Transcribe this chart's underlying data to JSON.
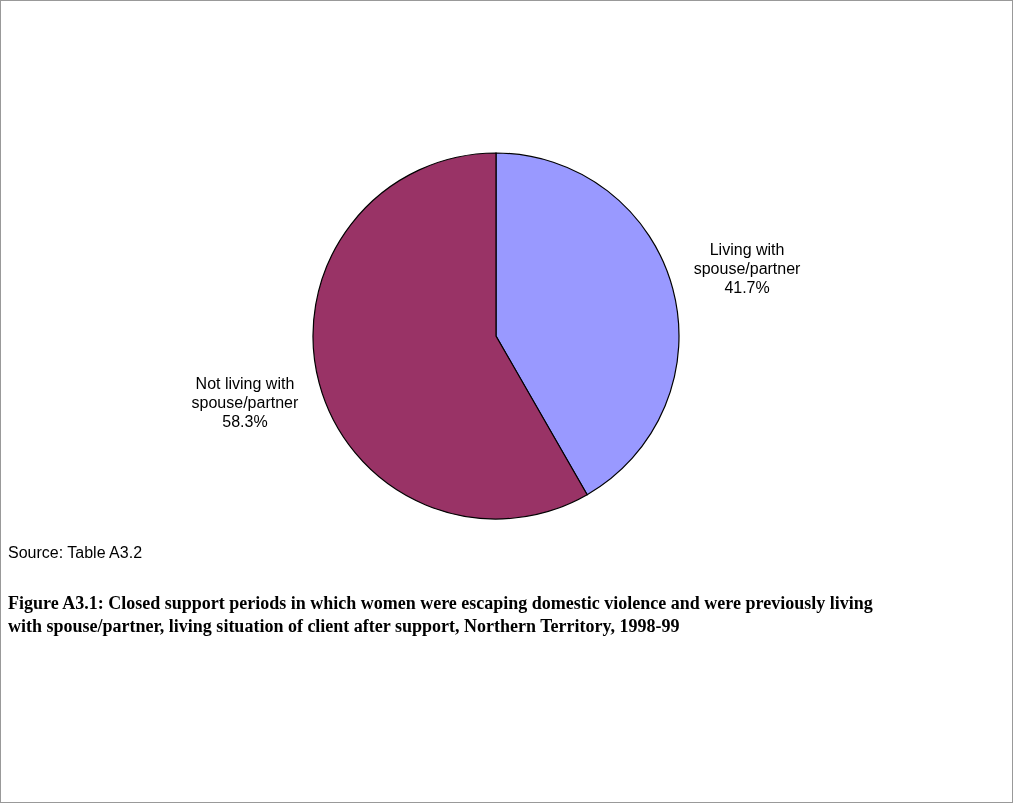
{
  "chart_data": {
    "type": "pie",
    "title": "Figure A3.1: Closed support periods in which women were escaping domestic violence and were previously living with spouse/partner, living situation of client after support, Northern Territory, 1998-99",
    "categories": [
      "Living with spouse/partner",
      "Not living with spouse/partner"
    ],
    "values": [
      41.7,
      58.3
    ],
    "colors": [
      "#9999ff",
      "#993366"
    ],
    "value_labels": [
      "41.7%",
      "58.3%"
    ],
    "annotations": [
      "Source: Table A3.2"
    ]
  }
}
